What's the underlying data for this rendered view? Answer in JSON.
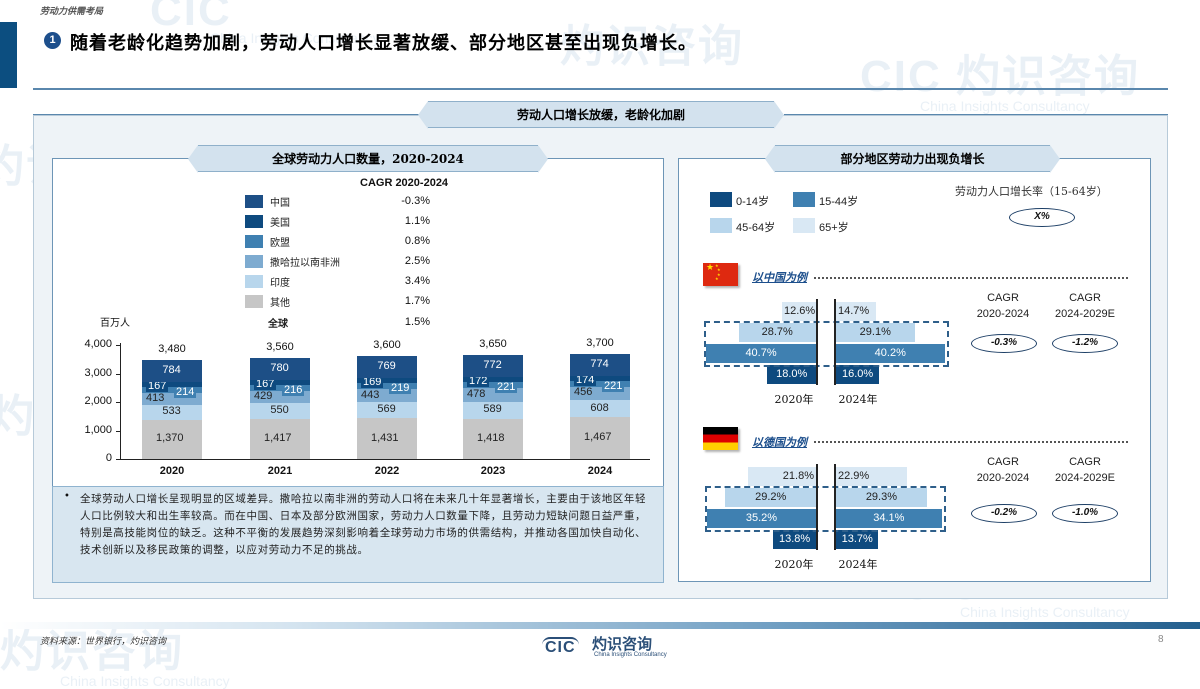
{
  "header": {
    "section_label": "劳动力供需考局",
    "badge_number": "1",
    "headline": "随着老龄化趋势加剧，劳动人口增长显著放缓、部分地区甚至出现负增长。"
  },
  "main_banner": "劳动人口增长放缓，老龄化加剧",
  "left": {
    "title": "全球劳动力人口数量，2020-2024",
    "cagr_header": "CAGR 2020-2024",
    "unit": "百万人",
    "legend": [
      {
        "label": "中国",
        "cagr": "-0.3%",
        "color": "#1d4f86"
      },
      {
        "label": "美国",
        "cagr": "1.1%",
        "color": "#0e4a7f"
      },
      {
        "label": "欧盟",
        "cagr": "0.8%",
        "color": "#3f80b1"
      },
      {
        "label": "撒哈拉以南非洲",
        "cagr": "2.5%",
        "color": "#7eabd0"
      },
      {
        "label": "印度",
        "cagr": "3.4%",
        "color": "#b8d6ec"
      },
      {
        "label": "其他",
        "cagr": "1.7%",
        "color": "#c6c6c6"
      }
    ],
    "global_label": "全球",
    "global_cagr": "1.5%",
    "note": "全球劳动人口增长呈现明显的区域差异。撒哈拉以南非洲的劳动人口将在未来几十年显著增长，主要由于该地区年轻人口比例较大和出生率较高。而在中国、日本及部分欧洲国家，劳动力人口数量下降，且劳动力短缺问题日益严重，特别是高技能岗位的缺乏。这种不平衡的发展趋势深刻影响着全球劳动力市场的供需结构，并推动各国加快自动化、技术创新以及移民政策的调整，以应对劳动力不足的挑战。",
    "note_bullet": "•"
  },
  "chart_data": [
    {
      "type": "bar",
      "stacked": true,
      "title": "全球劳动力人口数量，2020-2024",
      "xlabel": "",
      "ylabel": "百万人",
      "ylim": [
        0,
        4000
      ],
      "yticks": [
        "0",
        "1,000",
        "2,000",
        "3,000",
        "4,000"
      ],
      "categories": [
        "2020",
        "2021",
        "2022",
        "2023",
        "2024"
      ],
      "series": [
        {
          "name": "其他",
          "values": [
            1370,
            1417,
            1431,
            1418,
            1467
          ],
          "color": "#c6c6c6"
        },
        {
          "name": "印度",
          "values": [
            533,
            550,
            569,
            589,
            608
          ],
          "color": "#b8d6ec"
        },
        {
          "name": "撒哈拉以南非洲",
          "values": [
            413,
            429,
            443,
            478,
            456
          ],
          "color": "#7eabd0"
        },
        {
          "name": "欧盟",
          "values": [
            214,
            216,
            219,
            221,
            221
          ],
          "color": "#3f80b1"
        },
        {
          "name": "美国",
          "values": [
            167,
            167,
            169,
            172,
            174
          ],
          "color": "#0e4a7f"
        },
        {
          "name": "中国",
          "values": [
            784,
            780,
            769,
            772,
            774
          ],
          "color": "#1d4f86"
        }
      ],
      "totals": [
        "3,480",
        "3,560",
        "3,600",
        "3,650",
        "3,700"
      ],
      "total_labels": {
        "其他": [
          "1,370",
          "1,417",
          "1,431",
          "1,418",
          "1,467"
        ]
      },
      "cagr_2020_2024": {
        "中国": "-0.3%",
        "美国": "1.1%",
        "欧盟": "0.8%",
        "撒哈拉以南非洲": "2.5%",
        "印度": "3.4%",
        "其他": "1.7%",
        "全球": "1.5%"
      }
    },
    {
      "type": "bar",
      "orientation": "horizontal-pyramid",
      "title": "以中国为例",
      "categories": [
        "65+岁",
        "45-64岁",
        "15-44岁",
        "0-14岁"
      ],
      "series": [
        {
          "name": "2020年",
          "values": [
            12.6,
            28.7,
            40.7,
            18.0
          ]
        },
        {
          "name": "2024年",
          "values": [
            14.7,
            29.1,
            40.2,
            16.0
          ]
        }
      ],
      "cagr": {
        "2020-2024": "-0.3%",
        "2024-2029E": "-1.2%"
      }
    },
    {
      "type": "bar",
      "orientation": "horizontal-pyramid",
      "title": "以德国为例",
      "categories": [
        "65+岁",
        "45-64岁",
        "15-44岁",
        "0-14岁"
      ],
      "series": [
        {
          "name": "2020年",
          "values": [
            21.8,
            29.2,
            35.2,
            13.8
          ]
        },
        {
          "name": "2024年",
          "values": [
            22.9,
            29.3,
            34.1,
            13.7
          ]
        }
      ],
      "cagr": {
        "2020-2024": "-0.2%",
        "2024-2029E": "-1.0%"
      }
    }
  ],
  "right": {
    "title": "部分地区劳动力出现负增长",
    "legend": [
      {
        "label": "0-14岁",
        "color": "#0e4a7f"
      },
      {
        "label": "15-44岁",
        "color": "#3f80b1"
      },
      {
        "label": "45-64岁",
        "color": "#b8d6ec"
      },
      {
        "label": "65+岁",
        "color": "#d9e8f4"
      }
    ],
    "growth_label": "劳动力人口增长率（15-64岁）",
    "growth_placeholder": "X%",
    "cagr_label": "CAGR",
    "cagr_period_1": "2020-2024",
    "cagr_period_2": "2024-2029E",
    "china": {
      "example": "以中国为例",
      "years": [
        "2020年",
        "2024年"
      ],
      "rows": [
        {
          "left": "12.6%",
          "right": "14.7%"
        },
        {
          "left": "28.7%",
          "right": "29.1%"
        },
        {
          "left": "40.7%",
          "right": "40.2%"
        },
        {
          "left": "18.0%",
          "right": "16.0%"
        }
      ],
      "cagr_1": "-0.3%",
      "cagr_2": "-1.2%"
    },
    "germany": {
      "example": "以德国为例",
      "years": [
        "2020年",
        "2024年"
      ],
      "rows": [
        {
          "left": "21.8%",
          "right": "22.9%"
        },
        {
          "left": "29.2%",
          "right": "29.3%"
        },
        {
          "left": "35.2%",
          "right": "34.1%"
        },
        {
          "left": "13.8%",
          "right": "13.7%"
        }
      ],
      "cagr_1": "-0.2%",
      "cagr_2": "-1.0%"
    }
  },
  "footer": {
    "source": "资料来源：世界银行，灼识咨询",
    "logo_mark": "CIC",
    "logo_cn": "灼识咨询",
    "logo_en": "China Insights Consultancy",
    "page_number": "8"
  },
  "watermark": {
    "mark": "CIC",
    "cn": "灼识咨询",
    "en": "China Insights Consultancy"
  }
}
